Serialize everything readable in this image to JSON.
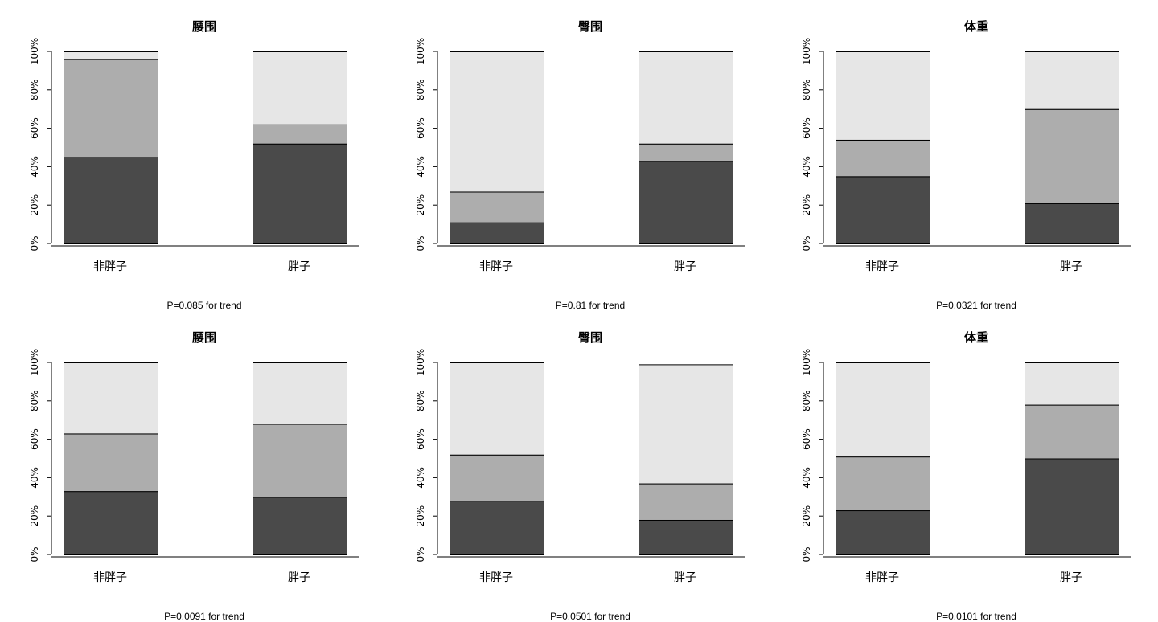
{
  "chart_data": [
    {
      "type": "bar",
      "stacked": true,
      "title": "腰围",
      "categories": [
        "非胖子",
        "胖子"
      ],
      "series": [
        {
          "color": "#4a4a4a",
          "values": [
            45,
            52
          ]
        },
        {
          "color": "#adadad",
          "values": [
            51,
            10
          ]
        },
        {
          "color": "#e6e6e6",
          "values": [
            4,
            38
          ]
        }
      ],
      "ylim": [
        0,
        100
      ],
      "yticks": [
        "0%",
        "20%",
        "40%",
        "60%",
        "80%",
        "100%"
      ],
      "note": "P=0.085 for trend"
    },
    {
      "type": "bar",
      "stacked": true,
      "title": "臀围",
      "categories": [
        "非胖子",
        "胖子"
      ],
      "series": [
        {
          "color": "#4a4a4a",
          "values": [
            11,
            43
          ]
        },
        {
          "color": "#adadad",
          "values": [
            16,
            9
          ]
        },
        {
          "color": "#e6e6e6",
          "values": [
            73,
            48
          ]
        }
      ],
      "ylim": [
        0,
        100
      ],
      "yticks": [
        "0%",
        "20%",
        "40%",
        "60%",
        "80%",
        "100%"
      ],
      "note": "P=0.81 for trend"
    },
    {
      "type": "bar",
      "stacked": true,
      "title": "体重",
      "categories": [
        "非胖子",
        "胖子"
      ],
      "series": [
        {
          "color": "#4a4a4a",
          "values": [
            35,
            21
          ]
        },
        {
          "color": "#adadad",
          "values": [
            19,
            49
          ]
        },
        {
          "color": "#e6e6e6",
          "values": [
            46,
            30
          ]
        }
      ],
      "ylim": [
        0,
        100
      ],
      "yticks": [
        "0%",
        "20%",
        "40%",
        "60%",
        "80%",
        "100%"
      ],
      "note": "P=0.0321 for trend"
    },
    {
      "type": "bar",
      "stacked": true,
      "title": "腰围",
      "categories": [
        "非胖子",
        "胖子"
      ],
      "series": [
        {
          "color": "#4a4a4a",
          "values": [
            33,
            30
          ]
        },
        {
          "color": "#adadad",
          "values": [
            30,
            38
          ]
        },
        {
          "color": "#e6e6e6",
          "values": [
            37,
            32
          ]
        }
      ],
      "ylim": [
        0,
        100
      ],
      "yticks": [
        "0%",
        "20%",
        "40%",
        "60%",
        "80%",
        "100%"
      ],
      "note": "P=0.0091 for trend"
    },
    {
      "type": "bar",
      "stacked": true,
      "title": "臀围",
      "categories": [
        "非胖子",
        "胖子"
      ],
      "series": [
        {
          "color": "#4a4a4a",
          "values": [
            28,
            18
          ]
        },
        {
          "color": "#adadad",
          "values": [
            24,
            19
          ]
        },
        {
          "color": "#e6e6e6",
          "values": [
            48,
            62
          ]
        }
      ],
      "ylim": [
        0,
        100
      ],
      "yticks": [
        "0%",
        "20%",
        "40%",
        "60%",
        "80%",
        "100%"
      ],
      "note": "P=0.0501 for trend"
    },
    {
      "type": "bar",
      "stacked": true,
      "title": "体重",
      "categories": [
        "非胖子",
        "胖子"
      ],
      "series": [
        {
          "color": "#4a4a4a",
          "values": [
            23,
            50
          ]
        },
        {
          "color": "#adadad",
          "values": [
            28,
            28
          ]
        },
        {
          "color": "#e6e6e6",
          "values": [
            49,
            22
          ]
        }
      ],
      "ylim": [
        0,
        100
      ],
      "yticks": [
        "0%",
        "20%",
        "40%",
        "60%",
        "80%",
        "100%"
      ],
      "note": "P=0.0101 for trend"
    }
  ]
}
